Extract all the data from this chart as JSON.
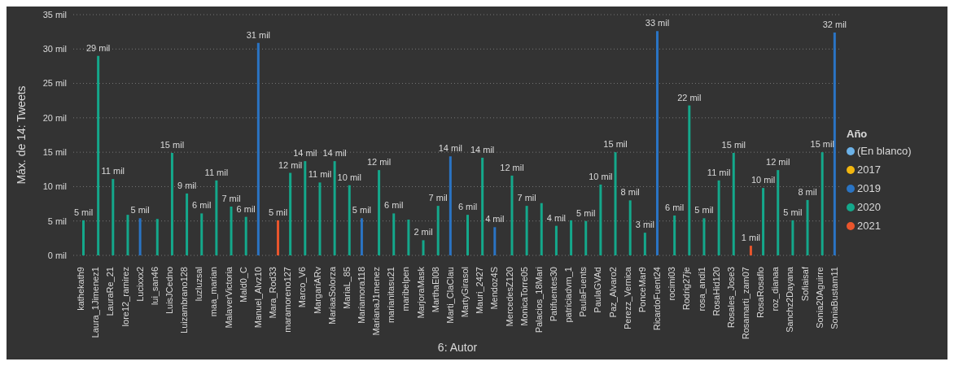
{
  "chart_data": {
    "type": "bar",
    "xlabel": "6: Autor",
    "ylabel": "Máx. de 14: Tweets",
    "legend_title": "Año",
    "legend": "right",
    "grid": "y",
    "categories": [
      "kathekath9",
      "Laura_1Jimenez1",
      "LauraRe_21",
      "lore12_ramirez",
      "Lucixxx2",
      "lui_san46",
      "LuisJCedno",
      "Luizambrano128",
      "luzluzsal",
      "maa_marian",
      "MalaverVictoria",
      "Mald0_C",
      "Manuel_Alvz10",
      "Mara_Rod33",
      "maramoreno127",
      "Marco_V6",
      "MargariARv",
      "MariaaSolorza",
      "MariaL_85",
      "Mariamora118",
      "MarianaJ1menez",
      "marianitasu21",
      "maribelpen",
      "MarjoraMask",
      "MarthaEl08",
      "Marti_ClaClau",
      "MartyGirasol",
      "Mauri_2427",
      "Mendoz4S",
      "MercedesZ120",
      "MonicaTorre05",
      "Palacios_18Mari",
      "Patifuentes30",
      "patriciadvm_1",
      "PaulaFuents",
      "PaulaGVAd",
      "Paz_Alvaro2",
      "Perezz_Vernica",
      "PonceMar9",
      "RicardoFuent24",
      "rocimi03",
      "Rodrig27je",
      "rosa_andi1",
      "RosaHid120",
      "Rosales_Jose3",
      "Rosamarti_zam07",
      "RosaRosaflo",
      "roz_dianaa",
      "Sanchz2Dayana",
      "Sofiaisaf",
      "Sonia20Aguirre",
      "SoniaBustam11"
    ],
    "series": [
      {
        "name": "(En blanco)",
        "color": "#6cb2e8",
        "values": [
          null,
          null,
          null,
          null,
          null,
          null,
          null,
          null,
          null,
          null,
          null,
          null,
          null,
          null,
          null,
          null,
          null,
          null,
          null,
          null,
          null,
          null,
          null,
          null,
          null,
          null,
          null,
          null,
          null,
          null,
          null,
          null,
          null,
          null,
          null,
          null,
          null,
          null,
          null,
          null,
          null,
          null,
          null,
          null,
          null,
          null,
          null,
          null,
          null,
          null,
          null,
          null
        ]
      },
      {
        "name": "2017",
        "color": "#f2b60f",
        "values": [
          null,
          null,
          null,
          null,
          null,
          null,
          null,
          null,
          null,
          null,
          null,
          null,
          null,
          null,
          null,
          null,
          null,
          null,
          null,
          null,
          null,
          null,
          null,
          null,
          null,
          null,
          null,
          null,
          null,
          null,
          null,
          null,
          null,
          null,
          null,
          null,
          null,
          null,
          null,
          null,
          null,
          null,
          null,
          null,
          null,
          null,
          null,
          null,
          null,
          null,
          null,
          null
        ]
      },
      {
        "name": "2019",
        "color": "#2a74c4",
        "values": [
          null,
          null,
          null,
          null,
          5.4,
          null,
          null,
          null,
          null,
          null,
          null,
          null,
          30.9,
          null,
          null,
          null,
          null,
          null,
          null,
          5.4,
          null,
          null,
          null,
          null,
          null,
          14.4,
          null,
          null,
          4.1,
          null,
          null,
          null,
          null,
          null,
          null,
          null,
          null,
          null,
          null,
          32.6,
          null,
          null,
          null,
          null,
          null,
          null,
          null,
          null,
          null,
          null,
          null,
          32.4
        ],
        "value_labels": [
          null,
          null,
          null,
          null,
          "5 mil",
          null,
          null,
          null,
          null,
          null,
          null,
          null,
          "31 mil",
          null,
          null,
          null,
          null,
          null,
          null,
          "5 mil",
          null,
          null,
          null,
          null,
          null,
          "14 mil",
          null,
          null,
          "4 mil",
          null,
          null,
          null,
          null,
          null,
          null,
          null,
          null,
          null,
          null,
          "33 mil",
          null,
          null,
          null,
          null,
          null,
          null,
          null,
          null,
          null,
          null,
          null,
          "32 mil"
        ]
      },
      {
        "name": "2020",
        "color": "#14a88b",
        "values": [
          5.1,
          29.0,
          11.1,
          5.9,
          null,
          5.3,
          14.9,
          9.0,
          6.1,
          10.9,
          7.1,
          5.6,
          null,
          null,
          12.0,
          13.7,
          10.6,
          13.7,
          10.2,
          null,
          12.4,
          6.1,
          5.2,
          2.2,
          7.2,
          null,
          5.9,
          14.2,
          null,
          11.6,
          7.2,
          7.6,
          4.3,
          5.1,
          5.0,
          10.3,
          15.0,
          8.0,
          3.3,
          null,
          5.8,
          21.8,
          5.4,
          10.9,
          14.9,
          null,
          9.8,
          12.4,
          5.1,
          8.05,
          15.0,
          null
        ],
        "value_labels": [
          "5 mil",
          "29 mil",
          "11 mil",
          null,
          null,
          null,
          "15 mil",
          "9 mil",
          "6 mil",
          "11 mil",
          "7 mil",
          "6 mil",
          null,
          null,
          "12 mil",
          "14 mil",
          "11 mil",
          "14 mil",
          "10 mil",
          null,
          "12 mil",
          "6 mil",
          null,
          "2 mil",
          "7 mil",
          null,
          "6 mil",
          "14 mil",
          null,
          "12 mil",
          "7 mil",
          null,
          "4 mil",
          null,
          "5 mil",
          "10 mil",
          "15 mil",
          "8 mil",
          "3 mil",
          null,
          "6 mil",
          "22 mil",
          "5 mil",
          "11 mil",
          "15 mil",
          null,
          "10 mil",
          "12 mil",
          "5 mil",
          "8 mil",
          "15 mil",
          null
        ]
      },
      {
        "name": "2021",
        "color": "#e9552c",
        "values": [
          null,
          null,
          null,
          null,
          null,
          null,
          null,
          null,
          null,
          null,
          null,
          null,
          null,
          5.1,
          null,
          null,
          null,
          null,
          null,
          null,
          null,
          null,
          null,
          null,
          null,
          null,
          null,
          null,
          null,
          null,
          null,
          null,
          null,
          null,
          null,
          null,
          null,
          null,
          null,
          null,
          null,
          null,
          null,
          null,
          null,
          1.4,
          null,
          null,
          null,
          null,
          null,
          null
        ],
        "value_labels": [
          null,
          null,
          null,
          null,
          null,
          null,
          null,
          null,
          null,
          null,
          null,
          null,
          null,
          "5 mil",
          null,
          null,
          null,
          null,
          null,
          null,
          null,
          null,
          null,
          null,
          null,
          null,
          null,
          null,
          null,
          null,
          null,
          null,
          null,
          null,
          null,
          null,
          null,
          null,
          null,
          null,
          null,
          null,
          null,
          null,
          null,
          "1 mil",
          null,
          null,
          null,
          null,
          null,
          null
        ]
      }
    ],
    "ylim": [
      0,
      35
    ],
    "yticks": [
      {
        "value": 0,
        "label": "0 mil"
      },
      {
        "value": 5,
        "label": "5 mil"
      },
      {
        "value": 10,
        "label": "10 mil"
      },
      {
        "value": 15,
        "label": "15 mil"
      },
      {
        "value": 20,
        "label": "20 mil"
      },
      {
        "value": 25,
        "label": "25 mil"
      },
      {
        "value": 30,
        "label": "30 mil"
      },
      {
        "value": 35,
        "label": "35 mil"
      }
    ]
  }
}
